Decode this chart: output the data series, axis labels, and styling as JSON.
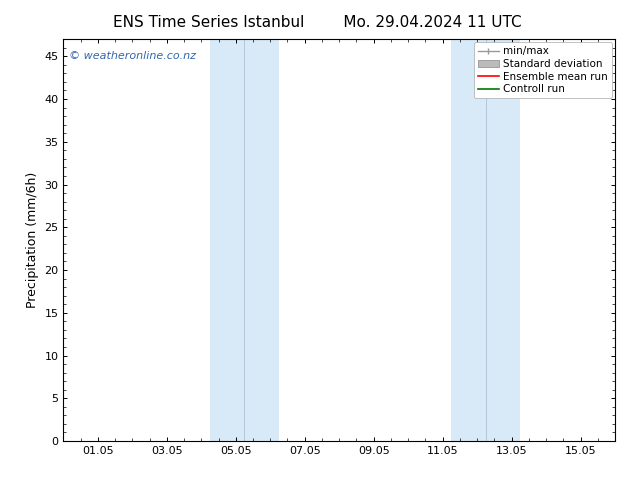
{
  "title_left": "ENS Time Series Istanbul",
  "title_right": "Mo. 29.04.2024 11 UTC",
  "ylabel": "Precipitation (mm/6h)",
  "xlabel": "",
  "watermark": "© weatheronline.co.nz",
  "watermark_color": "#3366aa",
  "background_color": "#ffffff",
  "plot_bg_color": "#ffffff",
  "ylim": [
    0,
    47
  ],
  "yticks": [
    0,
    5,
    10,
    15,
    20,
    25,
    30,
    35,
    40,
    45
  ],
  "xlim_start": 0.0,
  "xlim_end": 16.0,
  "xtick_labels": [
    "01.05",
    "03.05",
    "05.05",
    "07.05",
    "09.05",
    "11.05",
    "13.05",
    "15.05"
  ],
  "xtick_positions": [
    1,
    3,
    5,
    7,
    9,
    11,
    13,
    15
  ],
  "shaded_regions": [
    {
      "xmin": 4.25,
      "xmax": 6.25,
      "color": "#d8eaf7"
    },
    {
      "xmin": 11.25,
      "xmax": 13.25,
      "color": "#d8eaf7"
    }
  ],
  "shaded_region_dividers": [
    5.25,
    12.25
  ],
  "divider_color": "#b0c8d8",
  "legend_entries": [
    {
      "label": "min/max",
      "color": "#999999",
      "type": "errorbar"
    },
    {
      "label": "Standard deviation",
      "color": "#bbbbbb",
      "type": "bar"
    },
    {
      "label": "Ensemble mean run",
      "color": "#ff0000",
      "type": "line"
    },
    {
      "label": "Controll run",
      "color": "#007700",
      "type": "line"
    }
  ],
  "title_fontsize": 11,
  "axis_fontsize": 9,
  "tick_fontsize": 8,
  "legend_fontsize": 7.5,
  "watermark_fontsize": 8
}
